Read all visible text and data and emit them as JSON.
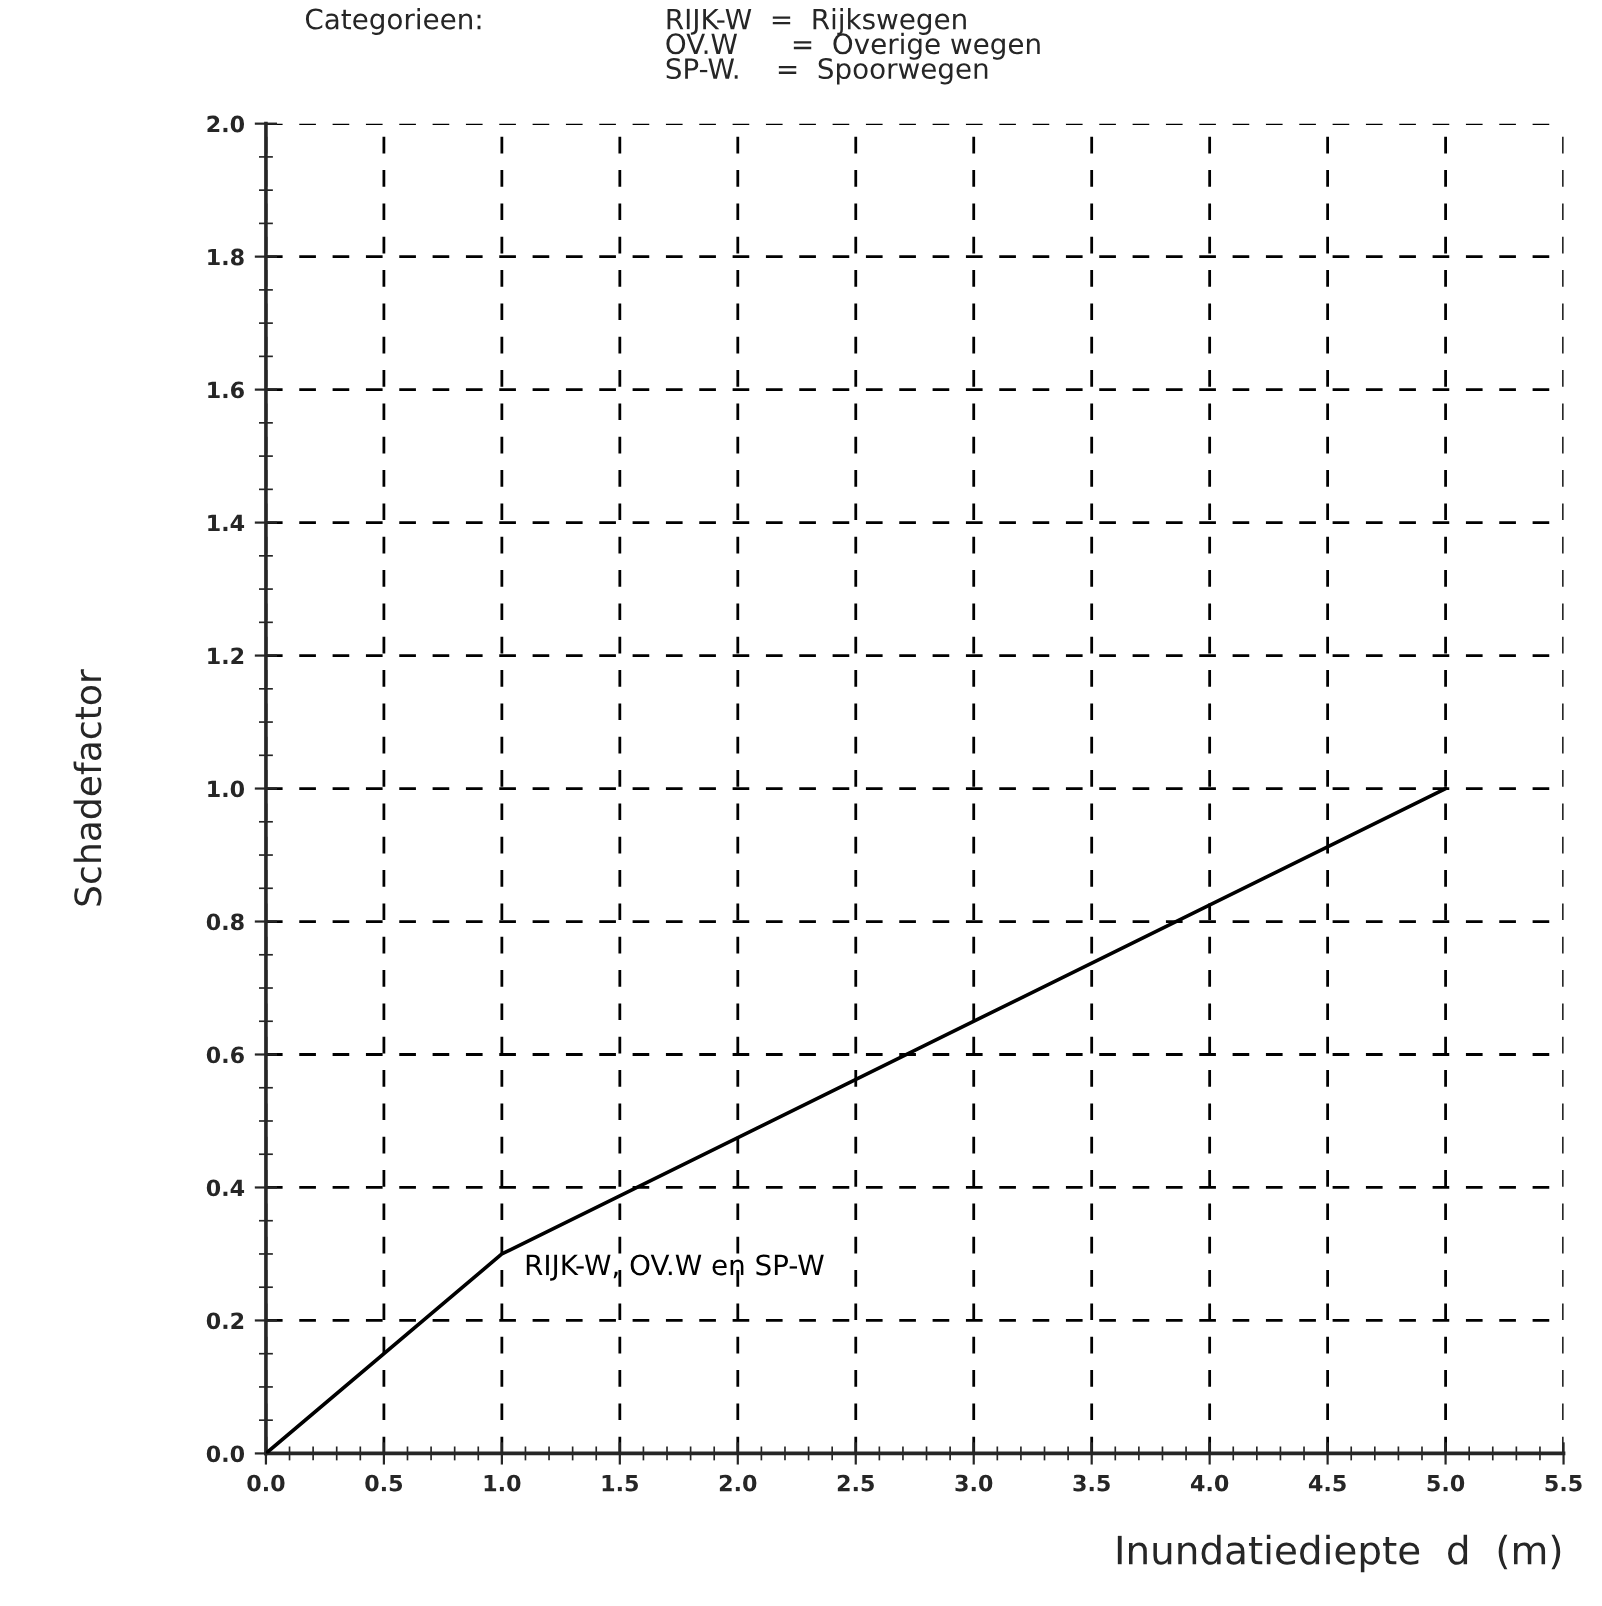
{
  "chart_data": {
    "type": "line",
    "xlabel": "Inundatiediepte  d  (m)",
    "ylabel": "Schadefactor",
    "annotations": [
      "Categorieen:",
      "RIJK-W  =  Rijkswegen\nOV.W      =  Overige wegen\nSP-W.    =  Spoorwegen"
    ],
    "x": [
      0,
      1,
      5
    ],
    "series": [
      {
        "name": "RIJK-W, OV.W en SP-W",
        "color": "#000000",
        "values": [
          0,
          0.3,
          1.0
        ]
      }
    ],
    "xlim": [
      0,
      5.5
    ],
    "ylim": [
      0,
      2.0
    ],
    "xticks": [
      {
        "value": 0,
        "label": "0.0"
      },
      0.5,
      {
        "value": 1,
        "label": "1.0"
      },
      1.5,
      {
        "value": 2,
        "label": "2.0"
      },
      2.5,
      {
        "value": 3,
        "label": "3.0"
      },
      3.5,
      {
        "value": 4,
        "label": "4.0"
      },
      4.5,
      {
        "value": 5,
        "label": "5.0"
      },
      5.5
    ],
    "yticks": [
      {
        "value": 0,
        "label": "0.0"
      },
      0.2,
      0.4,
      0.6,
      0.8,
      {
        "value": 1,
        "label": "1.0"
      },
      1.2,
      1.4,
      1.6,
      1.8,
      {
        "value": 2,
        "label": "2.0"
      }
    ],
    "grid": true,
    "legend": false,
    "line_style": "solid",
    "marker": "none"
  }
}
